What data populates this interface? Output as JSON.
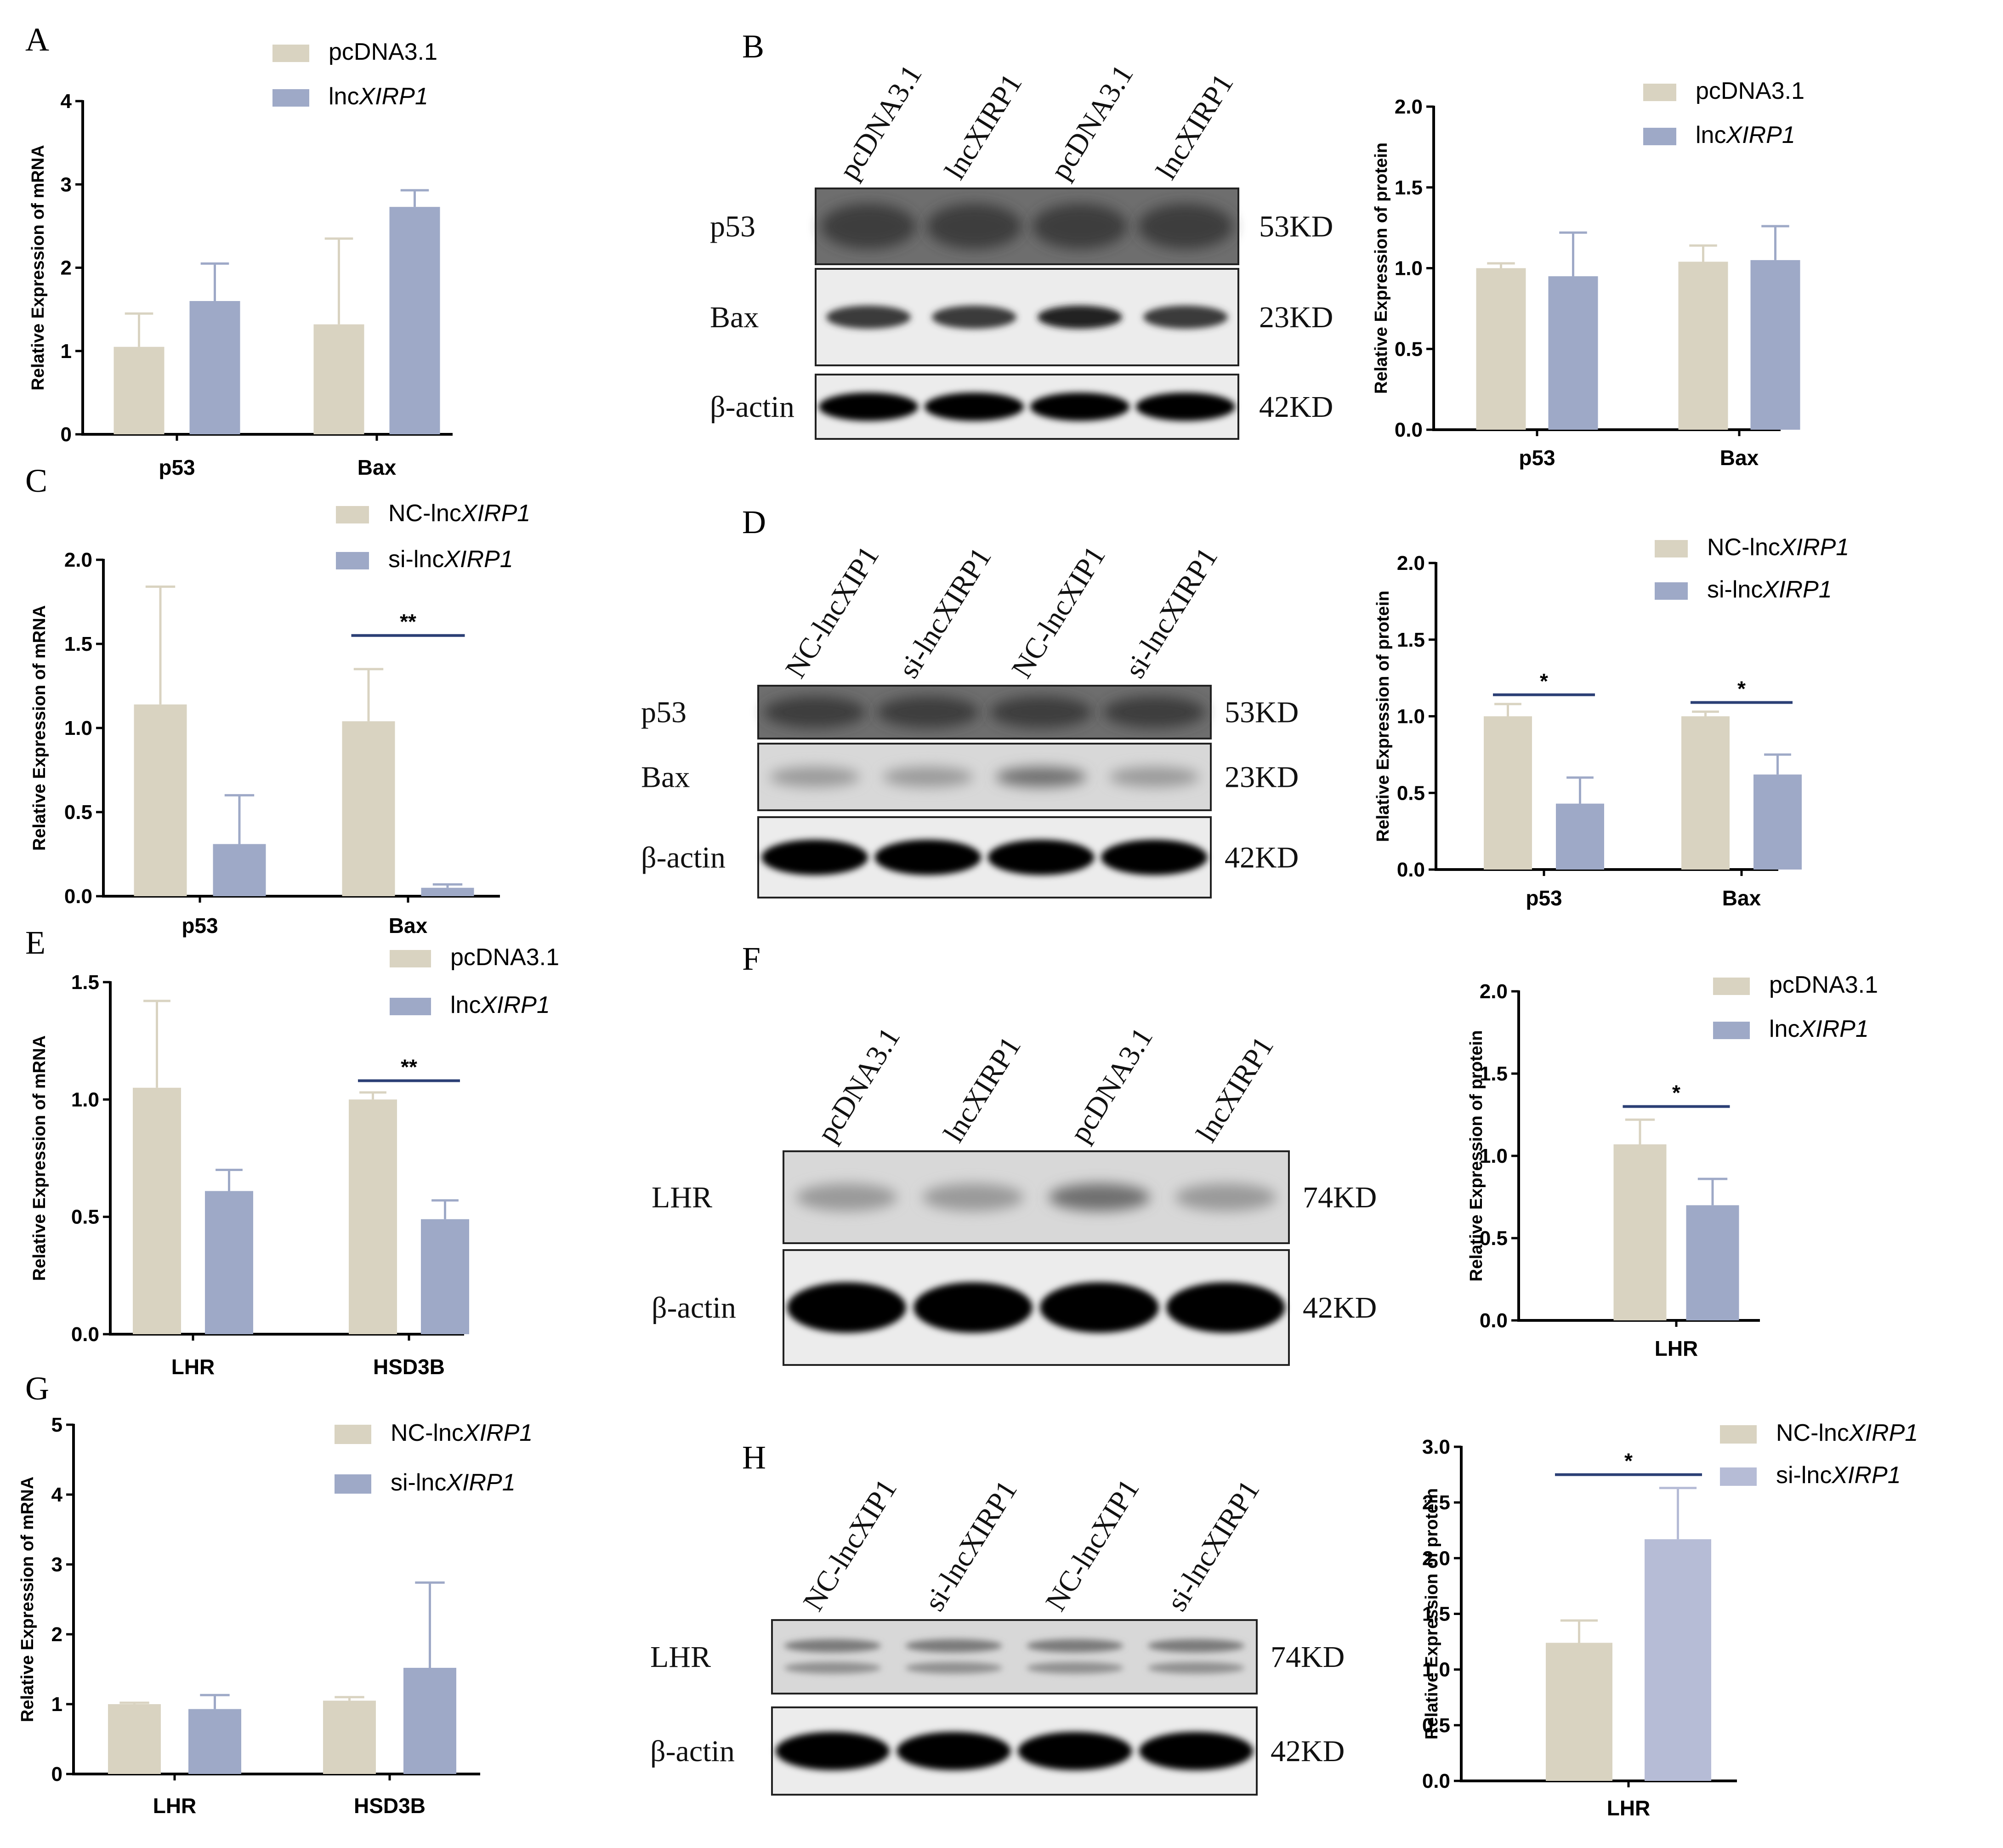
{
  "colors": {
    "control": "#d9d3c1",
    "treatment": "#9ea9c7",
    "treatment_light": "#b6bcd6",
    "sigline": "#2b3f75"
  },
  "panel_labels": [
    "A",
    "B",
    "C",
    "D",
    "E",
    "F",
    "G",
    "H"
  ],
  "blots": [
    {
      "id": "B",
      "lanes": [
        "pcDNA3.1",
        "lncXIRP1",
        "pcDNA3.1",
        "lncXIRP1"
      ],
      "rows": [
        {
          "label": "p53",
          "size": "53KD",
          "style": "smear"
        },
        {
          "label": "Bax",
          "size": "23KD",
          "style": "medium"
        },
        {
          "label": "β-actin",
          "size": "42KD",
          "style": "strong"
        }
      ]
    },
    {
      "id": "D",
      "lanes": [
        "NC-lncXIP1",
        "si-lncXIRP1",
        "NC-lncXIP1",
        "si-lncXIRP1"
      ],
      "rows": [
        {
          "label": "p53",
          "size": "53KD",
          "style": "smear"
        },
        {
          "label": "Bax",
          "size": "23KD",
          "style": "faint"
        },
        {
          "label": "β-actin",
          "size": "42KD",
          "style": "strong"
        }
      ]
    },
    {
      "id": "F",
      "lanes": [
        "pcDNA3.1",
        "lncXIRP1",
        "pcDNA3.1",
        "lncXIRP1"
      ],
      "rows": [
        {
          "label": "LHR",
          "size": "74KD",
          "style": "faint"
        },
        {
          "label": "β-actin",
          "size": "42KD",
          "style": "strong"
        }
      ]
    },
    {
      "id": "H",
      "lanes": [
        "NC-lncXIP1",
        "si-lncXIRP1",
        "NC-lncXIP1",
        "si-lncXIRP1"
      ],
      "rows": [
        {
          "label": "LHR",
          "size": "74KD",
          "style": "double"
        },
        {
          "label": "β-actin",
          "size": "42KD",
          "style": "strong"
        }
      ]
    }
  ],
  "chart_data": [
    {
      "id": "A",
      "type": "bar",
      "ylabel": "Relative Expression of mRNA",
      "ylim": [
        0,
        4
      ],
      "yticks": [
        "0",
        "1",
        "2",
        "3",
        "4"
      ],
      "categories": [
        "p53",
        "Bax"
      ],
      "series": [
        {
          "name": "pcDNA3.1",
          "values": [
            1.05,
            1.32
          ],
          "errors": [
            0.4,
            1.03
          ]
        },
        {
          "name_prefix": "lnc",
          "name_italic": "XIRP1",
          "values": [
            1.6,
            2.73
          ],
          "errors": [
            0.45,
            0.2
          ]
        }
      ],
      "sig": []
    },
    {
      "id": "B",
      "type": "bar",
      "ylabel": "Relative Expression of  protein",
      "ylim": [
        0,
        2
      ],
      "yticks": [
        "0.0",
        "0.5",
        "1.0",
        "1.5",
        "2.0"
      ],
      "categories": [
        "p53",
        "Bax"
      ],
      "series": [
        {
          "name": "pcDNA3.1",
          "values": [
            1.0,
            1.04
          ],
          "errors": [
            0.03,
            0.1
          ]
        },
        {
          "name_prefix": "lnc",
          "name_italic": "XIRP1",
          "values": [
            0.95,
            1.05
          ],
          "errors": [
            0.27,
            0.21
          ]
        }
      ],
      "sig": []
    },
    {
      "id": "C",
      "type": "bar",
      "ylabel": "Relative Expression of mRNA",
      "ylim": [
        0,
        2
      ],
      "yticks": [
        "0.0",
        "0.5",
        "1.0",
        "1.5",
        "2.0"
      ],
      "categories": [
        "p53",
        "Bax"
      ],
      "series": [
        {
          "name_prefix": "NC-lnc",
          "name_italic": "XIRP1",
          "values": [
            1.14,
            1.04
          ],
          "errors": [
            0.7,
            0.31
          ]
        },
        {
          "name_prefix": "si-lnc",
          "name_italic": "XIRP1",
          "values": [
            0.31,
            0.05
          ],
          "errors": [
            0.29,
            0.02
          ]
        }
      ],
      "sig": [
        {
          "category": 1,
          "level": 1.55,
          "text": "**"
        }
      ]
    },
    {
      "id": "D",
      "type": "bar",
      "ylabel": "Relative Expression of  protein",
      "ylim": [
        0,
        2
      ],
      "yticks": [
        "0.0",
        "0.5",
        "1.0",
        "1.5",
        "2.0"
      ],
      "categories": [
        "p53",
        "Bax"
      ],
      "series": [
        {
          "name_prefix": "NC-lnc",
          "name_italic": "XIRP1",
          "values": [
            1.0,
            1.0
          ],
          "errors": [
            0.08,
            0.03
          ]
        },
        {
          "name_prefix": "si-lnc",
          "name_italic": "XIRP1",
          "values": [
            0.43,
            0.62
          ],
          "errors": [
            0.17,
            0.13
          ]
        }
      ],
      "sig": [
        {
          "category": 0,
          "level": 1.14,
          "text": "*"
        },
        {
          "category": 1,
          "level": 1.09,
          "text": "*"
        }
      ]
    },
    {
      "id": "E",
      "type": "bar",
      "ylabel": "Relative Expression of mRNA",
      "ylim": [
        0,
        1.5
      ],
      "yticks": [
        "0.0",
        "0.5",
        "1.0",
        "1.5"
      ],
      "categories": [
        "LHR",
        "HSD3B"
      ],
      "series": [
        {
          "name": "pcDNA3.1",
          "values": [
            1.05,
            1.0
          ],
          "errors": [
            0.37,
            0.03
          ]
        },
        {
          "name_prefix": "lnc",
          "name_italic": "XIRP1",
          "values": [
            0.61,
            0.49
          ],
          "errors": [
            0.09,
            0.08
          ]
        }
      ],
      "sig": [
        {
          "category": 1,
          "level": 1.08,
          "text": "**"
        }
      ]
    },
    {
      "id": "F",
      "type": "bar",
      "ylabel": "Relative Expression of  protein",
      "ylim": [
        0,
        2
      ],
      "yticks": [
        "0.0",
        "0.5",
        "1.0",
        "1.5",
        "2.0"
      ],
      "categories": [
        "LHR"
      ],
      "series": [
        {
          "name": "pcDNA3.1",
          "values": [
            1.07
          ],
          "errors": [
            0.15
          ]
        },
        {
          "name_prefix": "lnc",
          "name_italic": "XIRP1",
          "values": [
            0.7
          ],
          "errors": [
            0.16
          ]
        }
      ],
      "sig": [
        {
          "category": 0,
          "level": 1.3,
          "text": "*"
        }
      ]
    },
    {
      "id": "G",
      "type": "bar",
      "ylabel": "Relative Expression of mRNA",
      "ylim": [
        0,
        5
      ],
      "yticks": [
        "0",
        "1",
        "2",
        "3",
        "4",
        "5"
      ],
      "categories": [
        "LHR",
        "HSD3B"
      ],
      "series": [
        {
          "name_prefix": "NC-lnc",
          "name_italic": "XIRP1",
          "values": [
            1.0,
            1.05
          ],
          "errors": [
            0.02,
            0.05
          ]
        },
        {
          "name_prefix": "si-lnc",
          "name_italic": "XIRP1",
          "values": [
            0.93,
            1.52
          ],
          "errors": [
            0.2,
            1.22
          ]
        }
      ],
      "sig": []
    },
    {
      "id": "H",
      "type": "bar",
      "ylabel": "Relative Expression of  protein",
      "ylim": [
        0,
        3
      ],
      "yticks": [
        "0.0",
        "0.5",
        "1.0",
        "1.5",
        "2.0",
        "2.5",
        "3.0"
      ],
      "categories": [
        "LHR"
      ],
      "series": [
        {
          "name_prefix": "NC-lnc",
          "name_italic": "XIRP1",
          "values": [
            1.24
          ],
          "errors": [
            0.2
          ]
        },
        {
          "name_prefix": "si-lnc",
          "name_italic": "XIRP1",
          "values": [
            2.17
          ],
          "errors": [
            0.46
          ]
        }
      ],
      "sig": [
        {
          "category": 0,
          "level": 2.75,
          "text": "*"
        }
      ]
    }
  ]
}
